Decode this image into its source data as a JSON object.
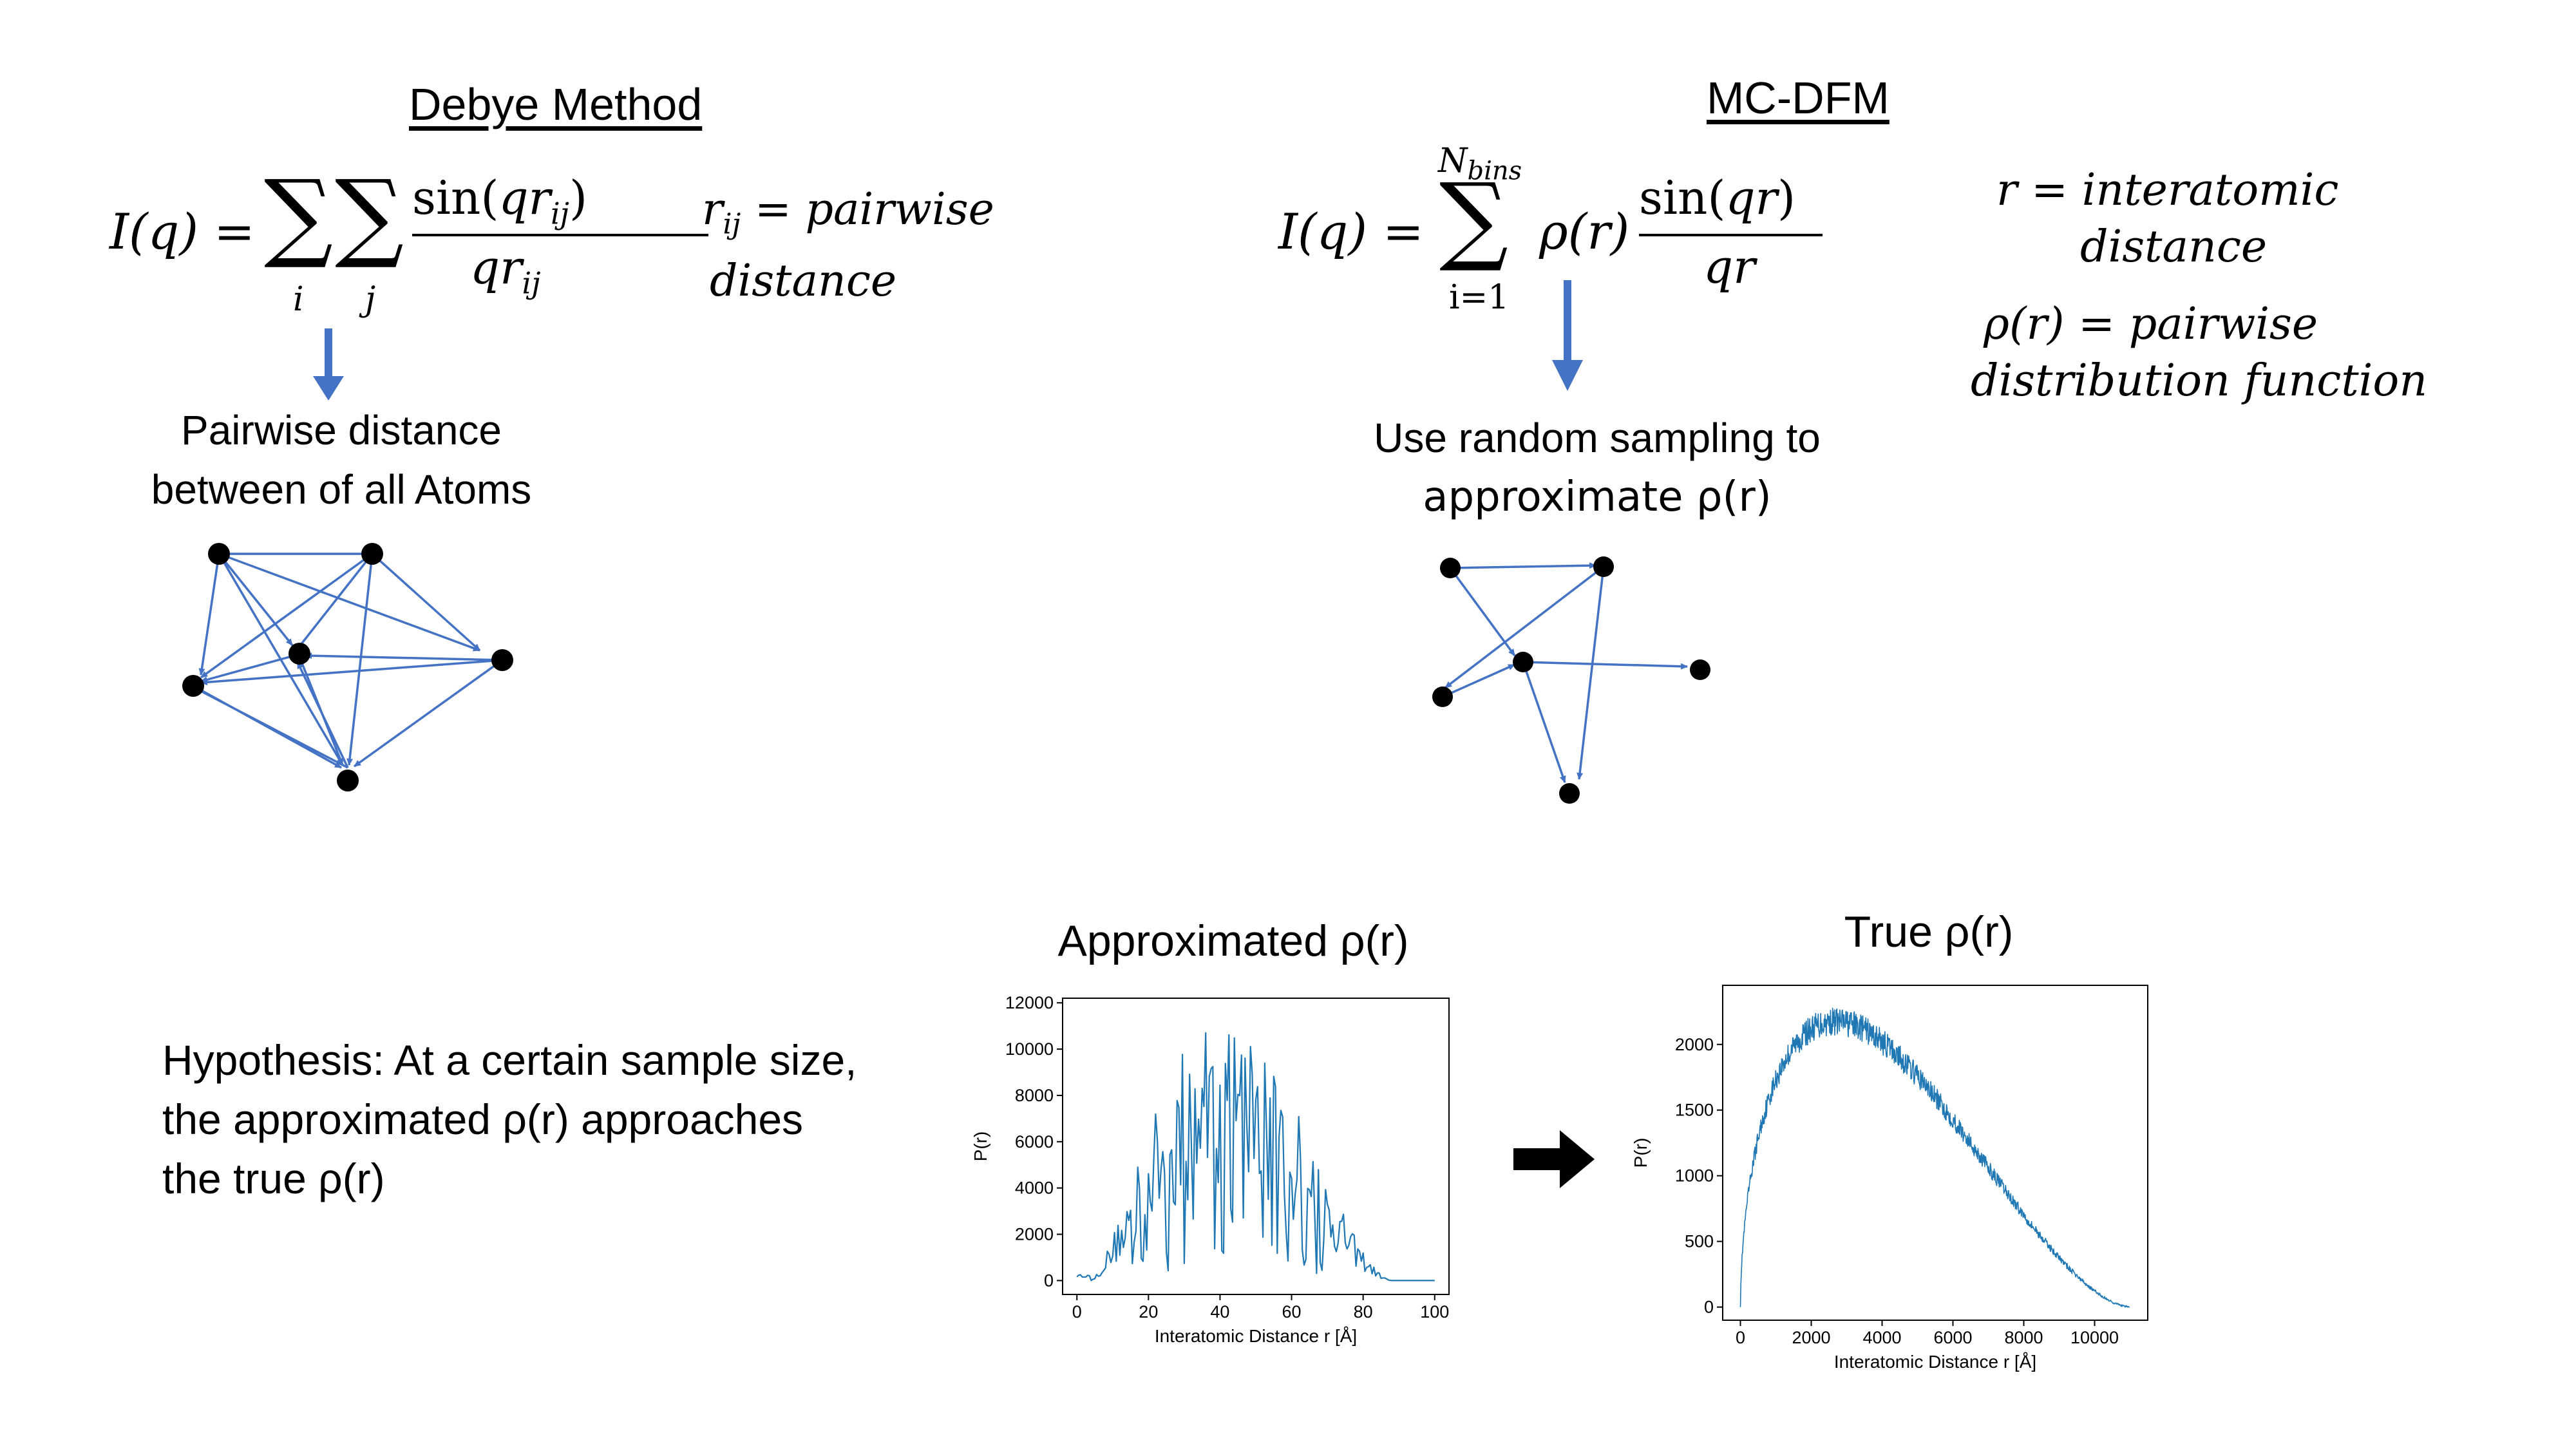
{
  "debye": {
    "heading": "Debye Method",
    "equation": {
      "lhs": "I(q) =",
      "sum_index_i": "i",
      "sum_index_j": "j",
      "numerator": "sin(qrij)",
      "denominator": "qrij"
    },
    "definition_line1": "rij = pairwise",
    "definition_line2": "distance",
    "caption_line1": "Pairwise distance",
    "caption_line2": "between of all Atoms"
  },
  "mcdfm": {
    "heading": "MC-DFM",
    "equation": {
      "lhs": "I(q) =",
      "sum_upper": "Nbins",
      "sum_lower": "i=1",
      "rho": "ρ(r)",
      "numerator": "sin(qr)",
      "denominator": "qr"
    },
    "definition_r_line1": "r = interatomic",
    "definition_r_line2": "distance",
    "definition_rho_line1": "ρ(r) = pairwise",
    "definition_rho_line2": "distribution function",
    "caption_line1": "Use random sampling to",
    "caption_line2": "approximate ρ(r)"
  },
  "hypothesis": {
    "line1": "Hypothesis: At a certain sample size,",
    "line2": "the approximated ρ(r) approaches",
    "line3": "the true ρ(r)"
  },
  "colors": {
    "accent": "#4472c4",
    "plot_line": "#1f77b4"
  },
  "chart_data": [
    {
      "type": "line",
      "title": "Approximated ρ(r)",
      "xlabel": "Interatomic Distance r [Å]",
      "ylabel": "P(r)",
      "xlim": [
        -4,
        104
      ],
      "ylim": [
        -600,
        12200
      ],
      "xticks": [
        0,
        20,
        40,
        60,
        80,
        100
      ],
      "yticks": [
        0,
        2000,
        4000,
        6000,
        8000,
        10000,
        12000
      ],
      "x_range": [
        0,
        100
      ],
      "shape": "noisy, jagged rise from ~0 at r≈5 to peak ~11500 near r≈33, falling to ~0 by r≈85",
      "grid": false
    },
    {
      "type": "line",
      "title": "True ρ(r)",
      "xlabel": "Interatomic Distance r [Å]",
      "ylabel": "P(r)",
      "xlim": [
        -500,
        11500
      ],
      "ylim": [
        -100,
        2450
      ],
      "xticks": [
        0,
        2000,
        4000,
        6000,
        8000,
        10000
      ],
      "yticks": [
        0,
        500,
        1000,
        1500,
        2000
      ],
      "x_range": [
        0,
        11000
      ],
      "shape": "smooth dense band, rises from 0 to peak ~2200 near r≈3800, falls to ~0 by r≈11000",
      "grid": false
    }
  ]
}
